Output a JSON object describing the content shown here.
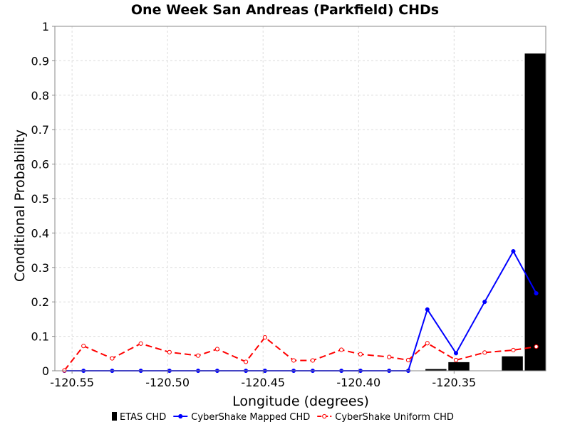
{
  "chart_data": {
    "type": "bar+line",
    "title": "One Week San Andreas (Parkfield) CHDs",
    "xlabel": "Longitude (degrees)",
    "ylabel": "Conditional Probability",
    "xlim": [
      -120.559,
      -120.302
    ],
    "ylim": [
      0,
      1
    ],
    "x_ticks": [
      -120.55,
      -120.5,
      -120.45,
      -120.4,
      -120.35
    ],
    "x_tick_labels": [
      "-120.55",
      "-120.50",
      "-120.45",
      "-120.40",
      "-120.35"
    ],
    "y_ticks": [
      0,
      0.1,
      0.2,
      0.3,
      0.4,
      0.5,
      0.6,
      0.7,
      0.8,
      0.9,
      1
    ],
    "y_tick_labels": [
      "0",
      "0.1",
      "0.2",
      "0.3",
      "0.4",
      "0.5",
      "0.6",
      "0.7",
      "0.8",
      "0.9",
      "1"
    ],
    "grid": true,
    "legend_position": "bottom",
    "bars": {
      "name": "ETAS CHD",
      "color": "#000000",
      "bar_width": 0.011,
      "x": [
        -120.3595,
        -120.3475,
        -120.3195,
        -120.3075
      ],
      "values": [
        0.005,
        0.025,
        0.042,
        0.921
      ]
    },
    "series": [
      {
        "name": "CyberShake Mapped CHD",
        "color": "#0000ff",
        "style": "solid",
        "marker": "filled-circle",
        "x": [
          -120.554,
          -120.544,
          -120.529,
          -120.514,
          -120.499,
          -120.484,
          -120.474,
          -120.459,
          -120.449,
          -120.434,
          -120.424,
          -120.409,
          -120.399,
          -120.384,
          -120.374,
          -120.364,
          -120.349,
          -120.334,
          -120.319,
          -120.307
        ],
        "values": [
          0,
          0,
          0,
          0,
          0,
          0,
          0,
          0,
          0,
          0,
          0,
          0,
          0,
          0,
          0,
          0.178,
          0.051,
          0.2,
          0.347,
          0.225
        ]
      },
      {
        "name": "CyberShake Uniform CHD",
        "color": "#ff0000",
        "style": "dashed",
        "marker": "open-circle",
        "x": [
          -120.554,
          -120.544,
          -120.529,
          -120.514,
          -120.499,
          -120.484,
          -120.474,
          -120.459,
          -120.449,
          -120.434,
          -120.424,
          -120.409,
          -120.399,
          -120.384,
          -120.374,
          -120.364,
          -120.349,
          -120.334,
          -120.319,
          -120.307
        ],
        "values": [
          0.001,
          0.072,
          0.036,
          0.079,
          0.054,
          0.044,
          0.063,
          0.026,
          0.097,
          0.03,
          0.03,
          0.061,
          0.048,
          0.04,
          0.031,
          0.08,
          0.031,
          0.053,
          0.06,
          0.07
        ]
      }
    ]
  }
}
